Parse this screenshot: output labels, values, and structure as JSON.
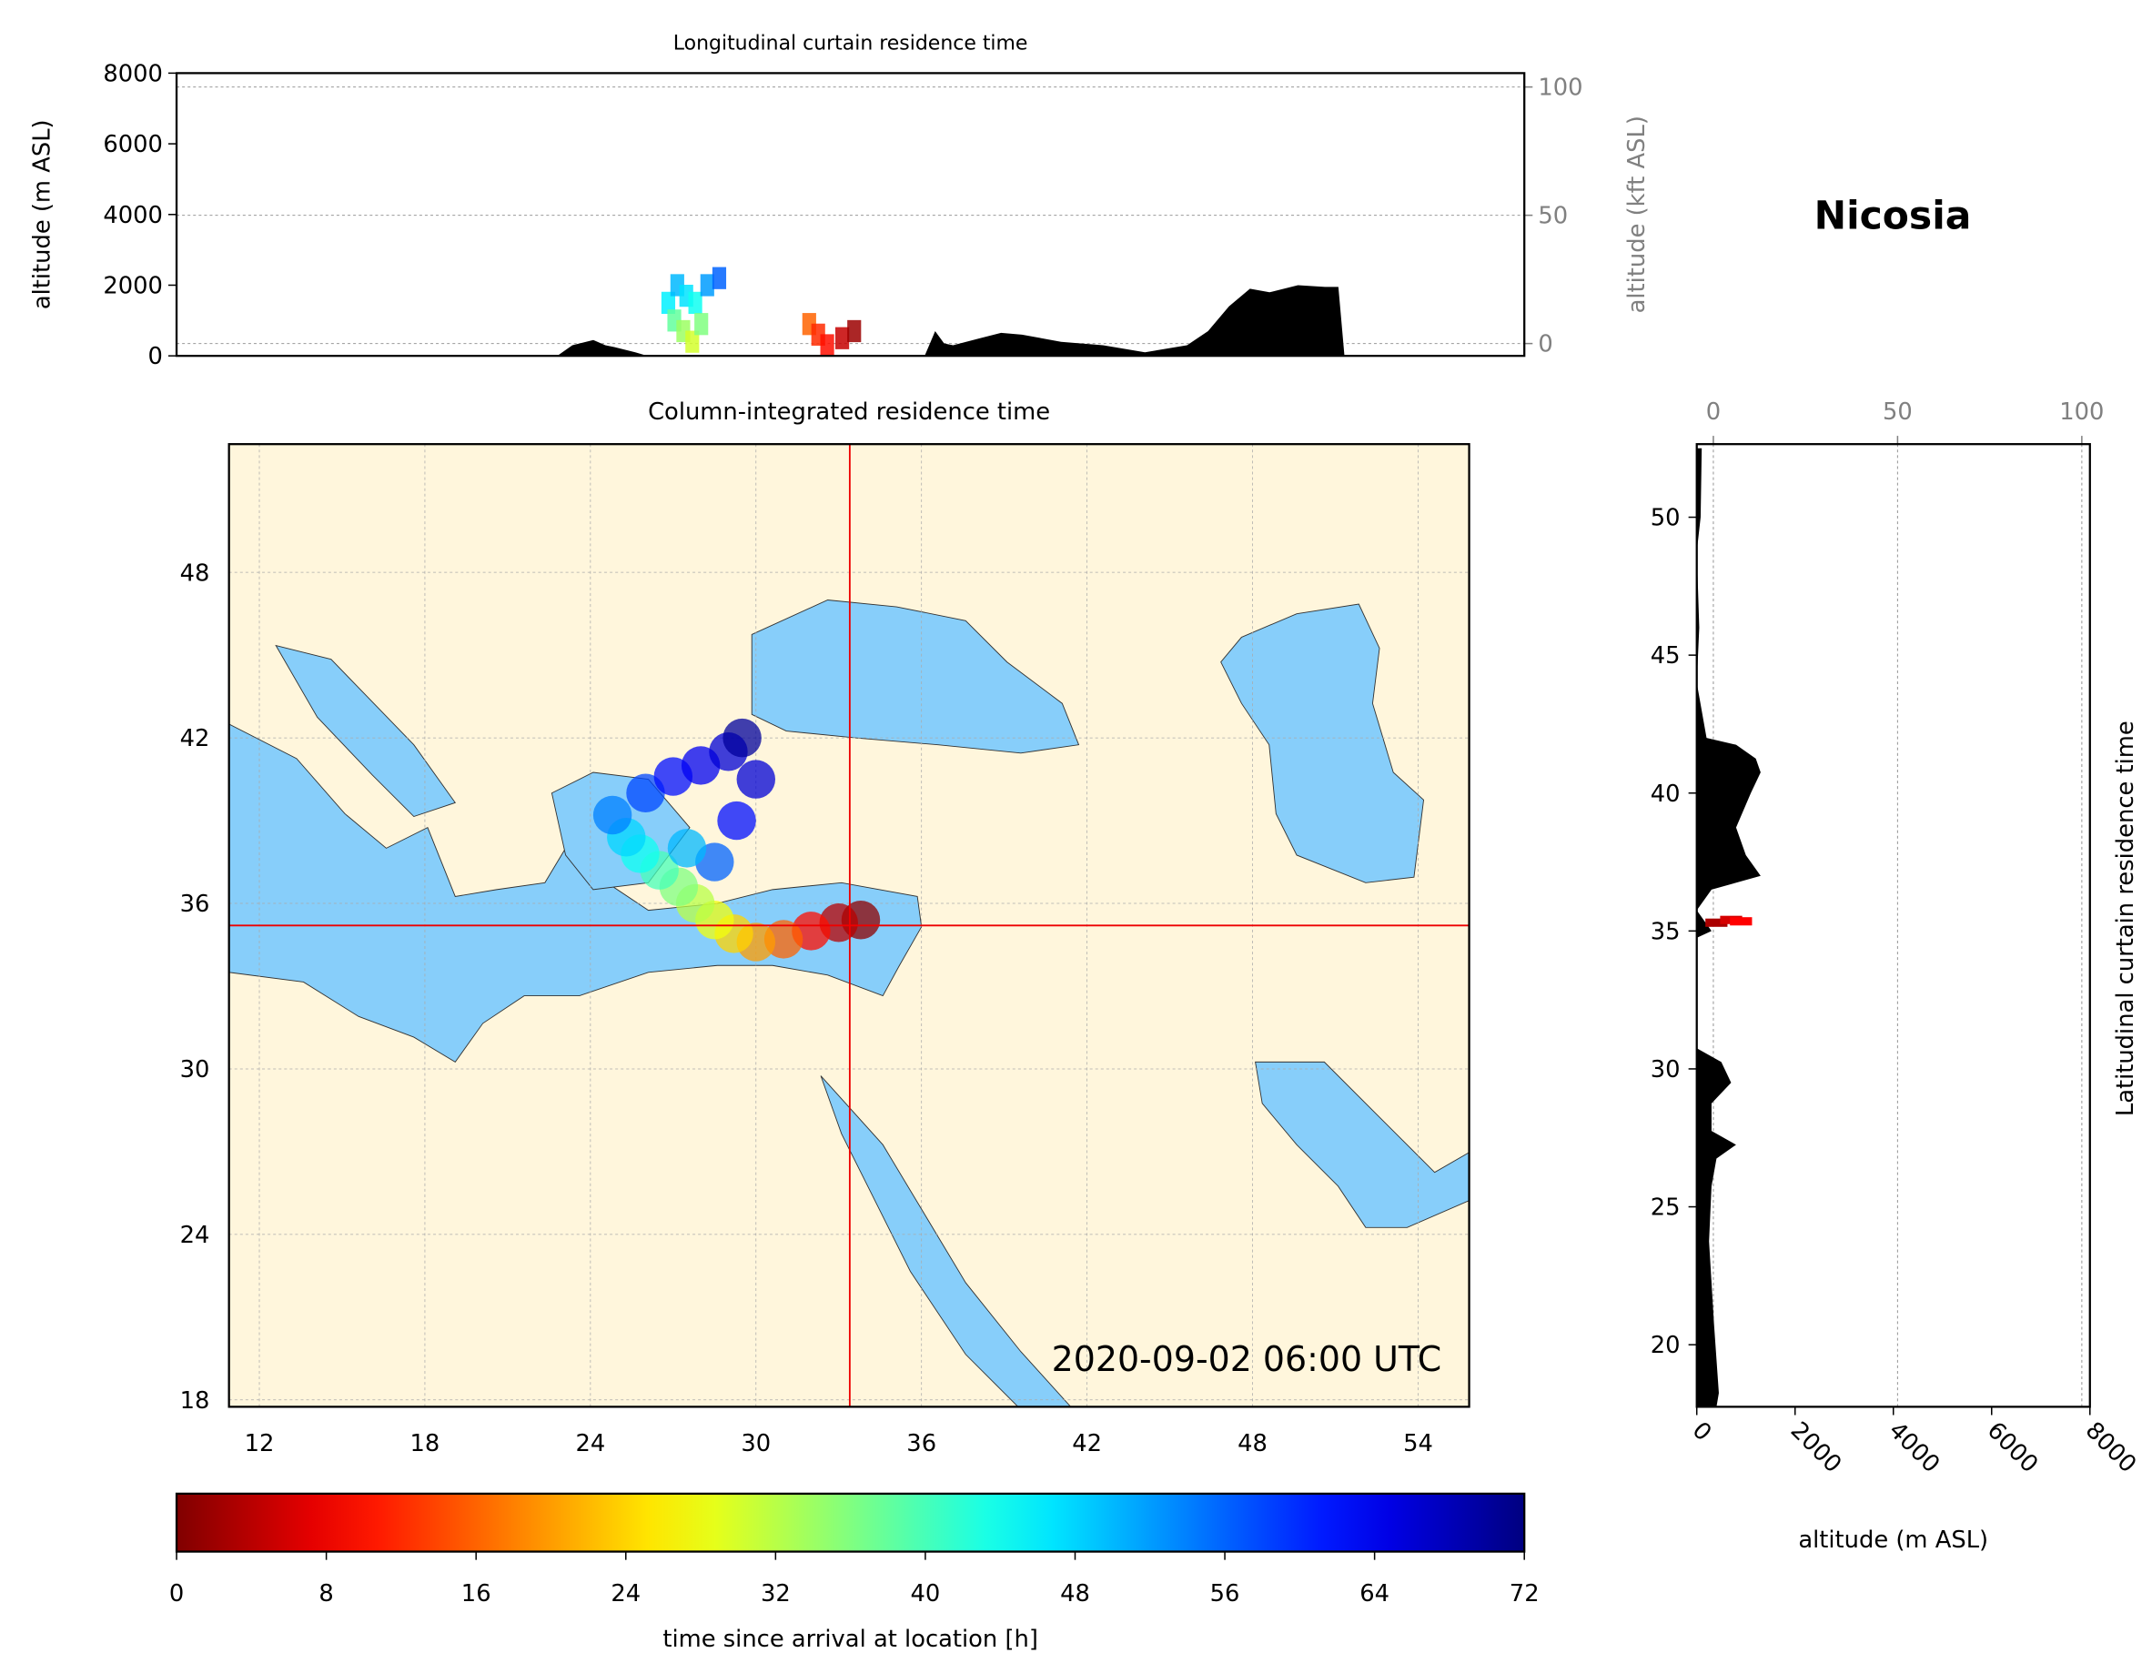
{
  "title": "Nicosia",
  "chart_data": [
    {
      "type": "area",
      "title": "Longitudinal curtain residence time",
      "ylabel": "altitude (m ASL)",
      "y2label": "altitude (kft ASL)",
      "xlim": [
        10.9,
        55.85
      ],
      "ylim": [
        0,
        8000
      ],
      "yticks": [
        0,
        2000,
        4000,
        6000,
        8000
      ],
      "y2lim": [
        -4.8,
        105.4
      ],
      "y2ticks": [
        0,
        50,
        100
      ],
      "grid": true,
      "color": "#000000",
      "x": [
        23.6,
        24.1,
        24.8,
        25.2,
        25.5,
        26.2,
        26.6,
        35.85,
        36.2,
        36.5,
        36.8,
        37.7,
        38.4,
        39.1,
        40.4,
        41.8,
        43.2,
        44.6,
        45.3,
        46.0,
        46.7,
        47.35,
        48.3,
        49.2,
        49.65,
        49.85
      ],
      "values": [
        0,
        300,
        450,
        300,
        250,
        100,
        0,
        0,
        700,
        350,
        300,
        500,
        650,
        600,
        400,
        300,
        100,
        300,
        700,
        1400,
        1900,
        1800,
        2000,
        1950,
        1950,
        0
      ],
      "plume": {
        "x": [
          27.3,
          27.6,
          27.9,
          28.2,
          28.6,
          29.0,
          27.5,
          27.8,
          28.1,
          28.4,
          32.0,
          32.3,
          32.6,
          33.1,
          33.5
        ],
        "y": [
          1500,
          2000,
          1700,
          1500,
          2000,
          2200,
          1000,
          700,
          400,
          900,
          900,
          600,
          300,
          500,
          700
        ],
        "values": [
          46,
          50,
          47,
          44,
          52,
          56,
          38,
          34,
          30,
          36,
          16,
          12,
          10,
          5,
          2
        ]
      },
      "colormap": "jet_r"
    },
    {
      "type": "map",
      "title": "Column-integrated residence time",
      "xlim": [
        10.9,
        55.85
      ],
      "ylim": [
        17.75,
        52.65
      ],
      "xticks": [
        12,
        18,
        24,
        30,
        36,
        42,
        48,
        54
      ],
      "yticks": [
        18,
        24,
        30,
        36,
        42,
        48
      ],
      "grid": true,
      "annotation": "2020-09-02 06:00 UTC",
      "crosshair": {
        "x": 33.4,
        "y": 35.2
      },
      "plume": {
        "x": [
          33.8,
          33.0,
          32.0,
          31.0,
          30.0,
          29.2,
          28.5,
          27.8,
          27.2,
          26.5,
          25.8,
          25.3,
          24.8,
          26.0,
          27.0,
          28.0,
          29.0,
          29.5,
          30.0,
          29.3,
          28.5,
          27.5
        ],
        "y": [
          35.4,
          35.3,
          35.0,
          34.7,
          34.6,
          34.9,
          35.4,
          36.0,
          36.6,
          37.2,
          37.8,
          38.4,
          39.2,
          40.0,
          40.6,
          41.0,
          41.5,
          42.0,
          40.5,
          39.0,
          37.5,
          38.0
        ],
        "values": [
          1,
          4,
          10,
          16,
          20,
          24,
          28,
          32,
          36,
          40,
          44,
          48,
          54,
          58,
          62,
          64,
          66,
          70,
          66,
          62,
          56,
          50
        ]
      },
      "colormap": "jet_r"
    },
    {
      "type": "profile",
      "ylabel": "Latitudinal curtain residence time",
      "xlabel": "altitude (m ASL)",
      "xlim": [
        0,
        8000
      ],
      "xticks": [
        0,
        2000,
        4000,
        6000,
        8000
      ],
      "x2lim": [
        -4.5,
        102.2
      ],
      "x2ticks": [
        0,
        50,
        100
      ],
      "ylim": [
        17.75,
        52.65
      ],
      "yticks": [
        20,
        25,
        30,
        35,
        40,
        45,
        50
      ],
      "grid": true,
      "color": "#000000",
      "y": [
        52.5,
        50.0,
        48.75,
        46.0,
        44.0,
        42.0,
        41.75,
        41.25,
        40.75,
        40.0,
        38.75,
        37.75,
        37.0,
        36.5,
        35.75,
        35.0,
        34.75,
        30.75,
        30.25,
        29.5,
        28.75,
        27.75,
        27.25,
        26.75,
        25.75,
        23.75,
        20.75,
        18.25,
        17.75
      ],
      "values": [
        100,
        80,
        0,
        50,
        0,
        200,
        800,
        1200,
        1300,
        1100,
        800,
        1000,
        1300,
        300,
        0,
        300,
        0,
        0,
        500,
        700,
        300,
        300,
        800,
        400,
        300,
        250,
        350,
        450,
        400
      ],
      "plume": {
        "y": [
          35.3,
          35.4,
          35.35
        ],
        "x": [
          400,
          700,
          900
        ],
        "values": [
          3,
          6,
          9
        ]
      },
      "colormap": "jet_r"
    },
    {
      "type": "colorbar",
      "xlabel": "time since arrival at location [h]",
      "xlim": [
        0,
        72
      ],
      "xticks": [
        0,
        8,
        16,
        24,
        32,
        40,
        48,
        56,
        64,
        72
      ],
      "colormap": "jet_r"
    }
  ]
}
